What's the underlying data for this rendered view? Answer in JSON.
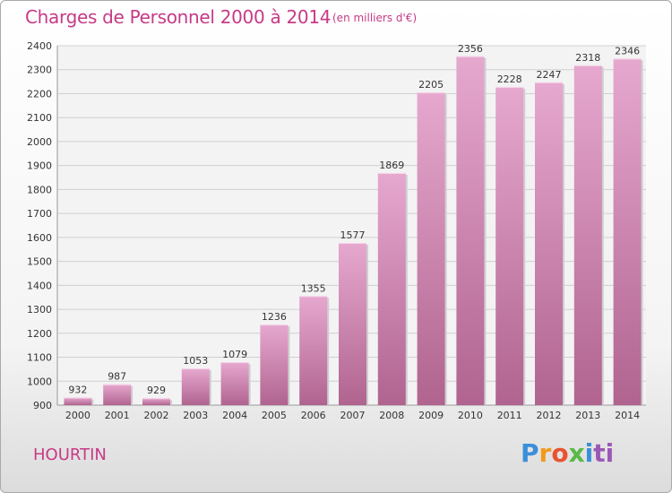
{
  "header": {
    "title": "Charges de Personnel 2000 à 2014",
    "subtitle": "(en milliers d'€)"
  },
  "footer": {
    "commune": "HOURTIN",
    "logo_text": "Proxiti"
  },
  "colors": {
    "accent": "#c73a86",
    "bar_top": "#e6a8cf",
    "bar_bottom": "#b0648f",
    "grid": "#d0d0d0"
  },
  "chart_data": {
    "type": "bar",
    "title": "Charges de Personnel 2000 à 2014",
    "subtitle": "(en milliers d'€)",
    "categories": [
      "2000",
      "2001",
      "2002",
      "2003",
      "2004",
      "2005",
      "2006",
      "2007",
      "2008",
      "2009",
      "2010",
      "2011",
      "2012",
      "2013",
      "2014"
    ],
    "values": [
      932,
      987,
      929,
      1053,
      1079,
      1236,
      1355,
      1577,
      1869,
      2205,
      2356,
      2228,
      2247,
      2318,
      2346
    ],
    "ylim": [
      900,
      2400
    ],
    "yticks": [
      900,
      1000,
      1100,
      1200,
      1300,
      1400,
      1500,
      1600,
      1700,
      1800,
      1900,
      2000,
      2100,
      2200,
      2300,
      2400
    ],
    "grid": true,
    "legend": "none"
  }
}
